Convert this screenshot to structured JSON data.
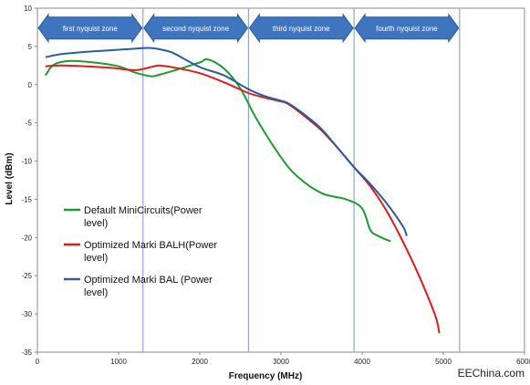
{
  "chart_data": {
    "type": "line",
    "xlabel": "Frequency (MHz)",
    "ylabel": "Level (dBm)",
    "xlim": [
      0,
      6000
    ],
    "ylim": [
      -35,
      10
    ],
    "x_ticks": [
      "0",
      "1000",
      "2000",
      "3000",
      "4000",
      "5000",
      "6000"
    ],
    "y_ticks": [
      "10",
      "5",
      "0",
      "-5",
      "-10",
      "-15",
      "-20",
      "-25",
      "-30",
      "-35"
    ],
    "grid": "vertical",
    "zone_boundaries": [
      1300,
      2600,
      3900,
      5200
    ],
    "zones": [
      {
        "label": "first nyquist zone",
        "x0": 0,
        "x1": 1300
      },
      {
        "label": "second nyquist zone",
        "x0": 1300,
        "x1": 2600
      },
      {
        "label": "third nyquist zone",
        "x0": 2600,
        "x1": 3900
      },
      {
        "label": "fourth nyquist zone",
        "x0": 3900,
        "x1": 5200
      }
    ],
    "legend_position": "lower-left",
    "series": [
      {
        "name": "Default MiniCircuits(Power level)",
        "legend_lines": [
          "Default MiniCircuits(Power",
          "level)"
        ],
        "color": "#1e9a36",
        "x": [
          100,
          200,
          400,
          700,
          1000,
          1200,
          1400,
          1500,
          1700,
          2000,
          2100,
          2300,
          2500,
          2700,
          3000,
          3200,
          3500,
          3800,
          4000,
          4100,
          4200,
          4350
        ],
        "y": [
          1.2,
          2.6,
          3.1,
          2.9,
          2.4,
          1.6,
          1.1,
          1.3,
          1.9,
          2.9,
          3.3,
          2.1,
          -0.5,
          -4.5,
          -9.5,
          -12.0,
          -14.2,
          -15.0,
          -16.2,
          -19.0,
          -19.8,
          -20.5
        ]
      },
      {
        "name": "Optimized Marki BALH(Power level)",
        "legend_lines": [
          "Optimized Marki BALH(Power",
          "level)"
        ],
        "color": "#e01b1b",
        "x": [
          100,
          300,
          600,
          900,
          1200,
          1400,
          1500,
          1700,
          2000,
          2300,
          2600,
          2800,
          3000,
          3100,
          3300,
          3500,
          3700,
          3900,
          4100,
          4300,
          4500,
          4700,
          4900,
          4950
        ],
        "y": [
          2.4,
          2.5,
          2.4,
          2.2,
          1.9,
          2.3,
          2.5,
          2.2,
          1.5,
          0.3,
          -1.1,
          -1.7,
          -2.2,
          -2.6,
          -4.2,
          -6.0,
          -8.3,
          -10.8,
          -13.3,
          -16.5,
          -20.5,
          -25.0,
          -30.2,
          -32.5
        ]
      },
      {
        "name": "Optimized Marki BAL (Power level)",
        "legend_lines": [
          "Optimized Marki BAL (Power",
          "level)"
        ],
        "color": "#2a5d9a",
        "x": [
          100,
          300,
          600,
          900,
          1200,
          1400,
          1600,
          1700,
          2000,
          2300,
          2600,
          2800,
          3000,
          3100,
          3300,
          3500,
          3700,
          3900,
          4100,
          4300,
          4500,
          4550
        ],
        "y": [
          3.6,
          4.0,
          4.3,
          4.5,
          4.7,
          4.8,
          4.4,
          4.0,
          2.3,
          1.2,
          -0.6,
          -1.5,
          -2.1,
          -2.5,
          -4.0,
          -5.8,
          -8.3,
          -10.8,
          -13.0,
          -15.5,
          -18.5,
          -19.8
        ]
      }
    ]
  },
  "watermark": "EEChina.com"
}
